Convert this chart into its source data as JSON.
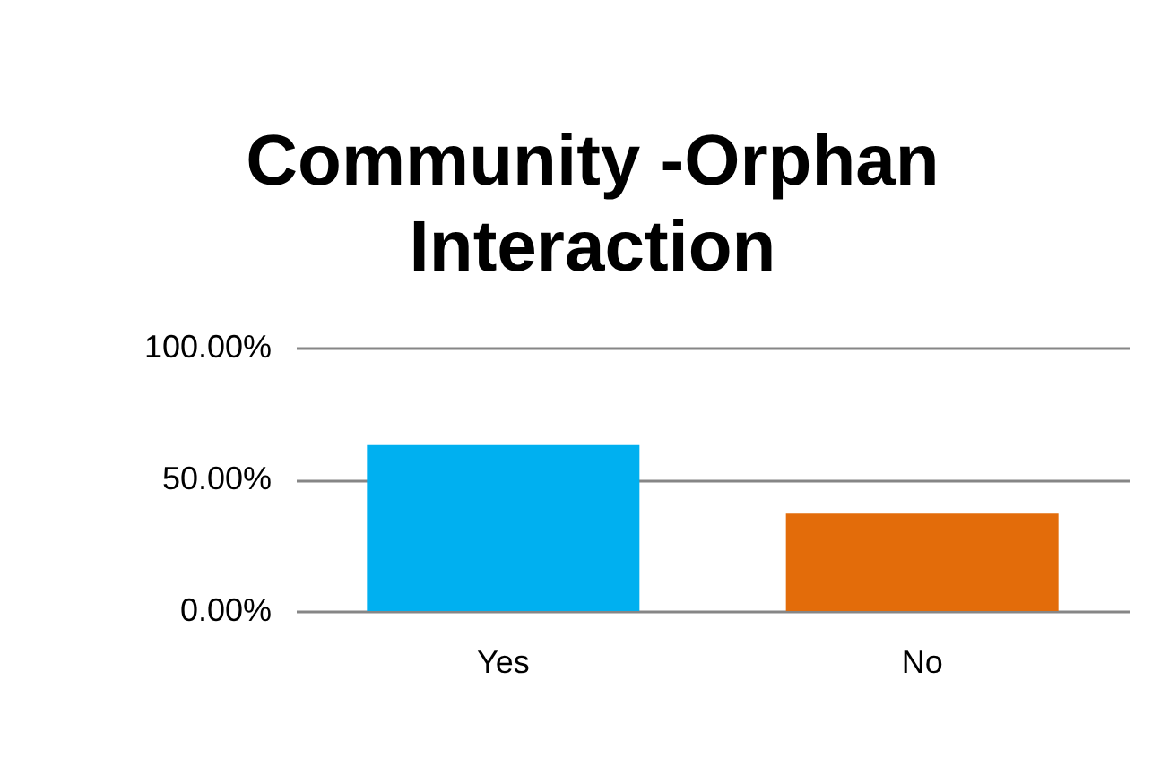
{
  "chart_data": {
    "type": "bar",
    "title": "Community -Orphan Interaction",
    "categories": [
      "Yes",
      "No"
    ],
    "values": [
      63,
      37
    ],
    "colors": [
      "#00b0f0",
      "#e36c0a"
    ],
    "ylim": [
      0,
      100
    ],
    "yticks": [
      {
        "value": 0,
        "label": "0.00%"
      },
      {
        "value": 50,
        "label": "50.00%"
      },
      {
        "value": 100,
        "label": "100.00%"
      }
    ],
    "grid": "y"
  }
}
